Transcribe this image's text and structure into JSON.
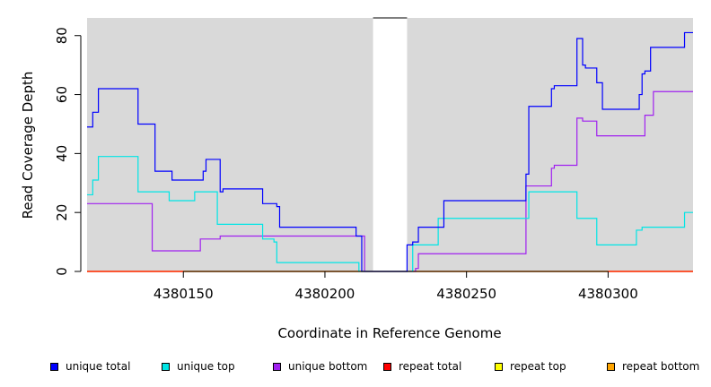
{
  "chart_data": {
    "type": "line",
    "title": "",
    "xlabel": "Coordinate in Reference Genome",
    "ylabel": "Read Coverage Depth",
    "xlim": [
      4380116,
      4380330
    ],
    "ylim": [
      0,
      86
    ],
    "x_ticks": [
      4380150,
      4380200,
      4380250,
      4380300
    ],
    "x_tick_labels": [
      "4380150",
      "4380200",
      "4380250",
      "4380300"
    ],
    "y_ticks": [
      0,
      20,
      40,
      60,
      80
    ],
    "y_tick_labels": [
      "0",
      "20",
      "40",
      "60",
      "80"
    ],
    "grid": false,
    "legend_position": "bottom",
    "gap_region": [
      4380217,
      4380229
    ],
    "series": [
      {
        "name": "unique total",
        "color": "#0000ff",
        "step": true,
        "points": [
          [
            4380116,
            49
          ],
          [
            4380118,
            54
          ],
          [
            4380120,
            62
          ],
          [
            4380134,
            50
          ],
          [
            4380140,
            34
          ],
          [
            4380146,
            31
          ],
          [
            4380157,
            34
          ],
          [
            4380158,
            38
          ],
          [
            4380163,
            27
          ],
          [
            4380164,
            28
          ],
          [
            4380178,
            23
          ],
          [
            4380183,
            22
          ],
          [
            4380184,
            15
          ],
          [
            4380211,
            12
          ],
          [
            4380213,
            0
          ],
          [
            4380229,
            9
          ],
          [
            4380231,
            10
          ],
          [
            4380233,
            15
          ],
          [
            4380242,
            24
          ],
          [
            4380271,
            33
          ],
          [
            4380272,
            56
          ],
          [
            4380280,
            62
          ],
          [
            4380281,
            63
          ],
          [
            4380289,
            79
          ],
          [
            4380291,
            70
          ],
          [
            4380292,
            69
          ],
          [
            4380296,
            64
          ],
          [
            4380298,
            55
          ],
          [
            4380311,
            60
          ],
          [
            4380312,
            67
          ],
          [
            4380313,
            68
          ],
          [
            4380315,
            76
          ],
          [
            4380327,
            81
          ],
          [
            4380330,
            81
          ]
        ]
      },
      {
        "name": "unique top",
        "color": "#00e5e5",
        "step": true,
        "points": [
          [
            4380116,
            26
          ],
          [
            4380118,
            31
          ],
          [
            4380120,
            39
          ],
          [
            4380134,
            27
          ],
          [
            4380145,
            24
          ],
          [
            4380154,
            27
          ],
          [
            4380162,
            16
          ],
          [
            4380178,
            11
          ],
          [
            4380182,
            10
          ],
          [
            4380183,
            3
          ],
          [
            4380212,
            0
          ],
          [
            4380231,
            9
          ],
          [
            4380240,
            18
          ],
          [
            4380272,
            27
          ],
          [
            4380289,
            18
          ],
          [
            4380296,
            9
          ],
          [
            4380310,
            14
          ],
          [
            4380312,
            15
          ],
          [
            4380327,
            20
          ],
          [
            4380330,
            20
          ]
        ]
      },
      {
        "name": "unique bottom",
        "color": "#a020f0",
        "step": true,
        "points": [
          [
            4380116,
            23
          ],
          [
            4380139,
            7
          ],
          [
            4380156,
            11
          ],
          [
            4380163,
            12
          ],
          [
            4380214,
            0
          ],
          [
            4380232,
            1
          ],
          [
            4380233,
            6
          ],
          [
            4380271,
            29
          ],
          [
            4380280,
            35
          ],
          [
            4380281,
            36
          ],
          [
            4380289,
            52
          ],
          [
            4380291,
            51
          ],
          [
            4380296,
            46
          ],
          [
            4380313,
            53
          ],
          [
            4380316,
            61
          ],
          [
            4380330,
            61
          ]
        ]
      },
      {
        "name": "repeat total",
        "color": "#ff0000",
        "step": true,
        "points": [
          [
            4380116,
            0
          ],
          [
            4380330,
            0
          ]
        ]
      },
      {
        "name": "repeat top",
        "color": "#ffff00",
        "step": true,
        "points": [
          [
            4380116,
            0
          ],
          [
            4380330,
            0
          ]
        ]
      },
      {
        "name": "repeat bottom",
        "color": "#ffa500",
        "step": true,
        "points": [
          [
            4380116,
            0
          ],
          [
            4380330,
            0
          ]
        ]
      }
    ]
  }
}
